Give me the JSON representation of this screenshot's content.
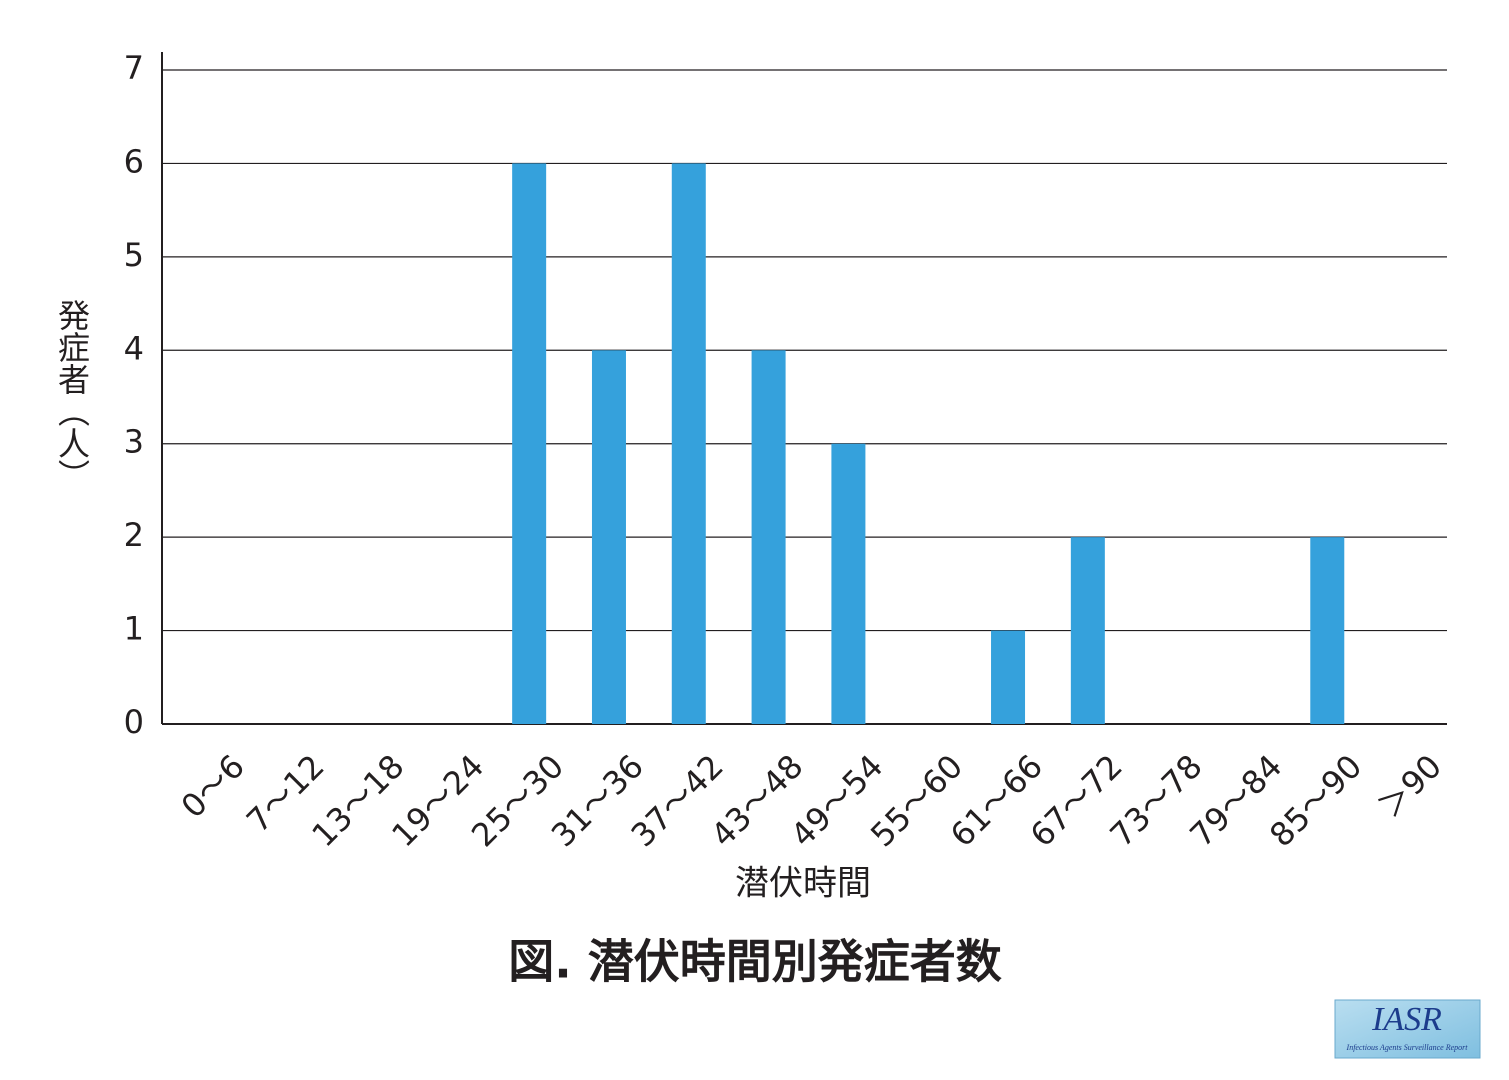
{
  "chart_data": {
    "type": "bar",
    "title": "図. 潜伏時間別発症者数",
    "x_label": "潜伏時間",
    "y_label": "発症者（人）",
    "categories": [
      "0～6",
      "7～12",
      "13～18",
      "19～24",
      "25～30",
      "31～36",
      "37～42",
      "43～48",
      "49～54",
      "55～60",
      "61～66",
      "67～72",
      "73～78",
      "79～84",
      "85～90",
      "＞90"
    ],
    "values": [
      0,
      0,
      0,
      0,
      6,
      4,
      6,
      4,
      3,
      0,
      1,
      2,
      0,
      0,
      2,
      0
    ],
    "color": "#35a1dc",
    "ylim": [
      0,
      7
    ],
    "yticks": [
      0,
      1,
      2,
      3,
      4,
      5,
      6,
      7
    ],
    "grid": true
  },
  "logo": {
    "title": "IASR",
    "subtitle": "Infectious Agents Surveillance Report"
  }
}
